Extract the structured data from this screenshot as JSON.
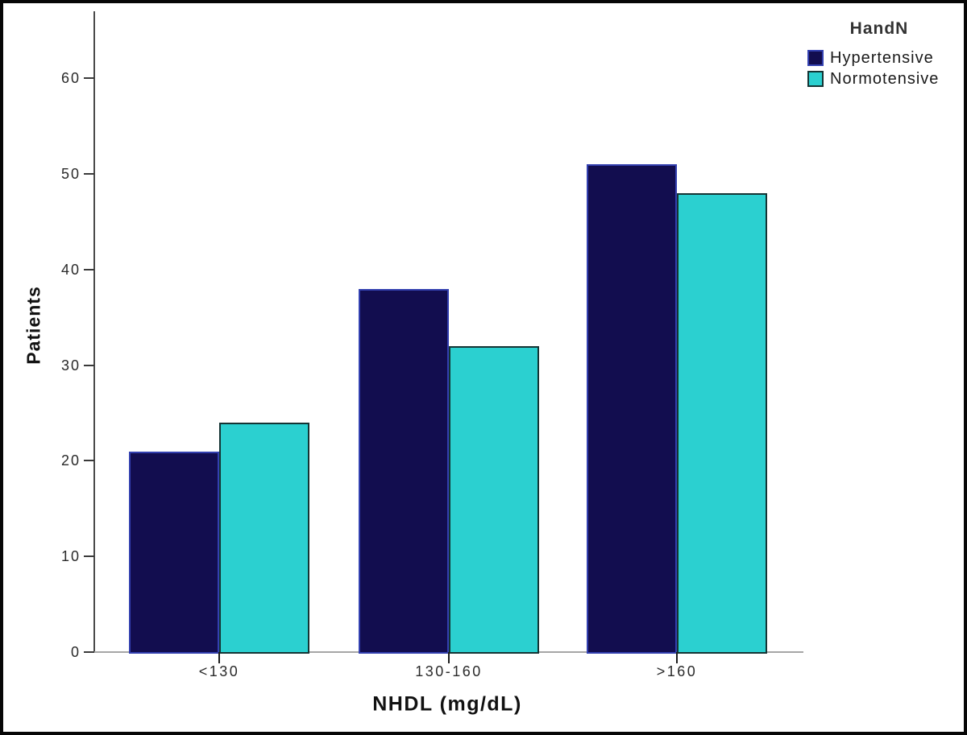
{
  "figure": {
    "background": "#ffffff",
    "frame_border_color": "#060606"
  },
  "chart_data": {
    "type": "bar",
    "grouped": true,
    "title": "",
    "xlabel": "NHDL (mg/dL)",
    "ylabel": "Patients",
    "categories": [
      "<130",
      "130-160",
      ">160"
    ],
    "series": [
      {
        "name": "Hypertensive",
        "values": [
          21,
          38,
          51
        ],
        "fill": "#120d4f",
        "border": "#3340b0"
      },
      {
        "name": "Normotensive",
        "values": [
          24,
          32,
          48
        ],
        "fill": "#2bd0d0",
        "border": "#143434"
      }
    ],
    "legend": {
      "title": "HandN",
      "position": "top-right"
    },
    "yticks": [
      0,
      10,
      20,
      30,
      40,
      50,
      60
    ],
    "ylim": [
      0,
      67
    ],
    "grid": false,
    "axis_colors": {
      "y_axis": "#4a4a4a",
      "x_axis": "#a6a6a6",
      "tick": "#1c1c1c"
    }
  }
}
